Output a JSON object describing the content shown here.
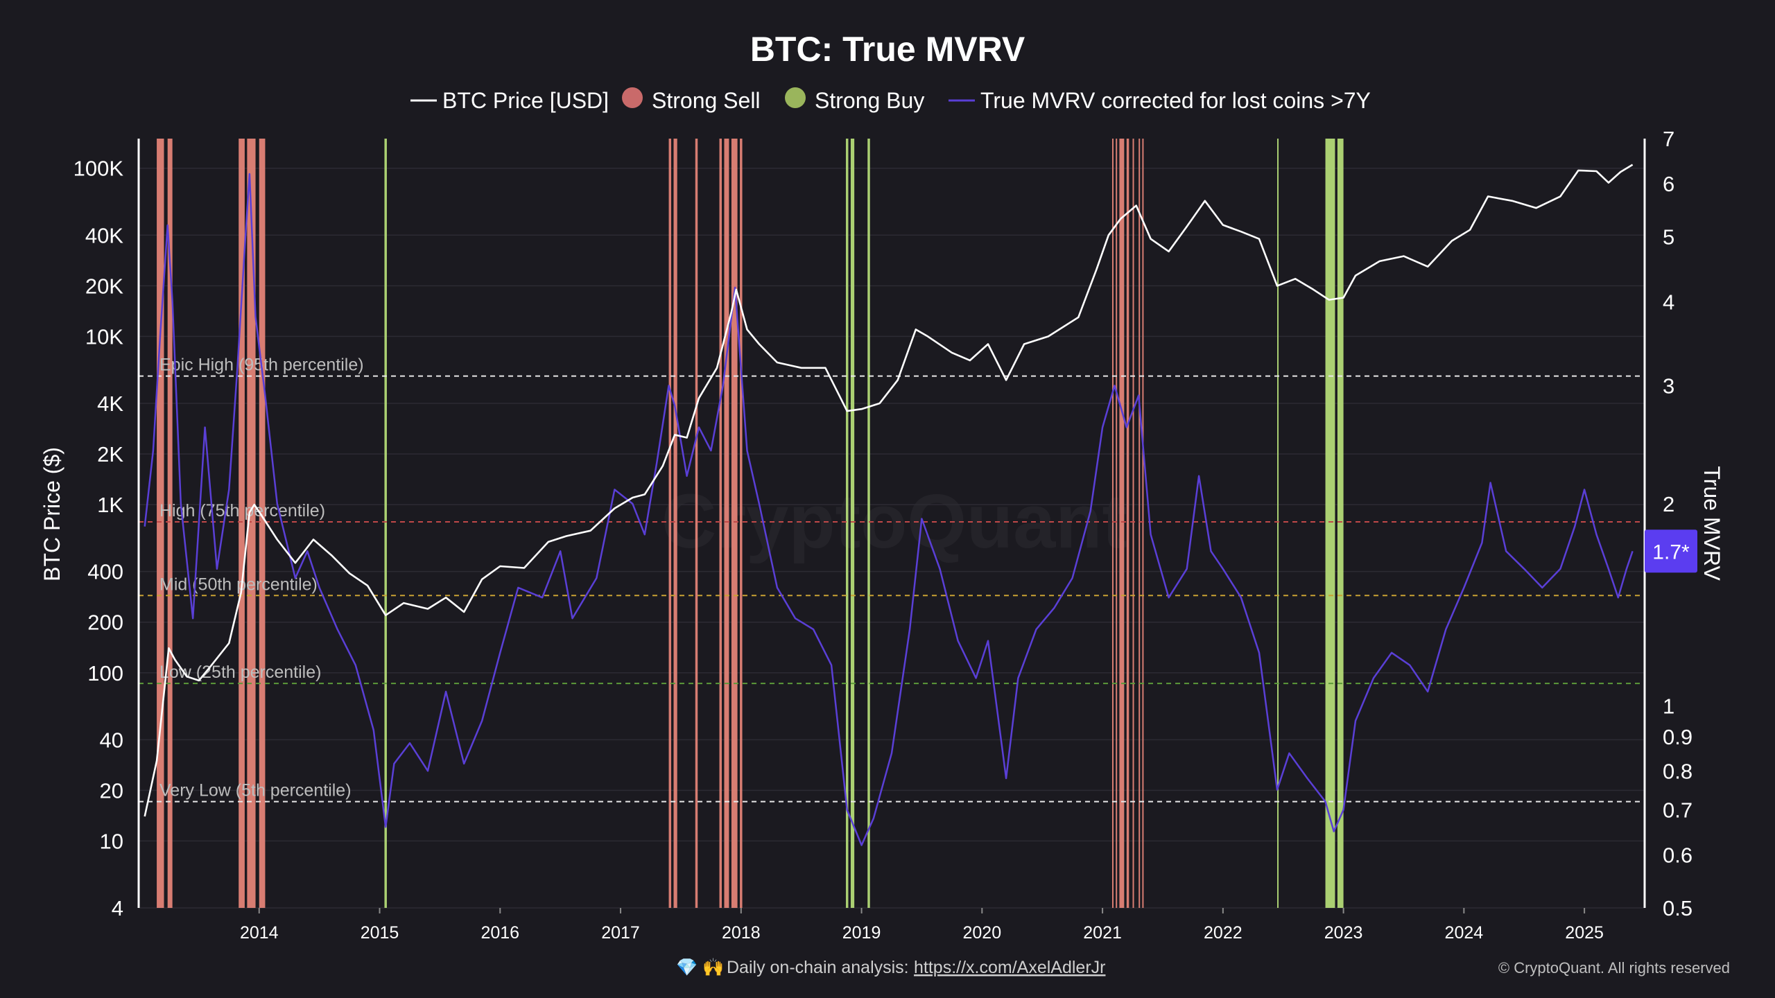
{
  "chart_data": {
    "type": "line",
    "title": "BTC: True MVRV",
    "legend": [
      {
        "label": "BTC Price [USD]",
        "marker": "line",
        "color": "#ffffff"
      },
      {
        "label": "Strong Sell",
        "marker": "dot",
        "color": "#c96a6a"
      },
      {
        "label": "Strong Buy",
        "marker": "dot",
        "color": "#9ab55c"
      },
      {
        "label": "True MVRV corrected for lost coins >7Y",
        "marker": "line",
        "color": "#5a3fd6"
      }
    ],
    "legend_position": "top-center",
    "y_left": {
      "label": "BTC Price ($)",
      "scale": "log",
      "range": [
        4,
        150000
      ],
      "ticks": [
        {
          "v": 4,
          "t": "4"
        },
        {
          "v": 10,
          "t": "10"
        },
        {
          "v": 20,
          "t": "20"
        },
        {
          "v": 40,
          "t": "40"
        },
        {
          "v": 100,
          "t": "100"
        },
        {
          "v": 200,
          "t": "200"
        },
        {
          "v": 400,
          "t": "400"
        },
        {
          "v": 1000,
          "t": "1K"
        },
        {
          "v": 2000,
          "t": "2K"
        },
        {
          "v": 4000,
          "t": "4K"
        },
        {
          "v": 10000,
          "t": "10K"
        },
        {
          "v": 20000,
          "t": "20K"
        },
        {
          "v": 40000,
          "t": "40K"
        },
        {
          "v": 100000,
          "t": "100K"
        }
      ]
    },
    "y_right": {
      "label": "True MVRV",
      "scale": "log",
      "range": [
        0.5,
        7
      ],
      "ticks": [
        {
          "v": 0.5,
          "t": "0.5"
        },
        {
          "v": 0.6,
          "t": "0.6"
        },
        {
          "v": 0.7,
          "t": "0.7"
        },
        {
          "v": 0.8,
          "t": "0.8"
        },
        {
          "v": 0.9,
          "t": "0.9"
        },
        {
          "v": 1,
          "t": "1"
        },
        {
          "v": 2,
          "t": "2"
        },
        {
          "v": 3,
          "t": "3"
        },
        {
          "v": 4,
          "t": "4"
        },
        {
          "v": 5,
          "t": "5"
        },
        {
          "v": 6,
          "t": "6"
        },
        {
          "v": 7,
          "t": "7"
        }
      ],
      "current_value_label": "1.7*",
      "current_value": 1.7
    },
    "x_axis": {
      "range": [
        2013.0,
        2025.5
      ],
      "ticks": [
        "2014",
        "2015",
        "2016",
        "2017",
        "2018",
        "2019",
        "2020",
        "2021",
        "2022",
        "2023",
        "2024",
        "2025"
      ]
    },
    "grid": true,
    "reference_lines": [
      {
        "label": "Epic High (95th percentile)",
        "mvrv": 3.1,
        "color": "#e8e8e8"
      },
      {
        "label": "High (75th percentile)",
        "mvrv": 1.88,
        "color": "#c04848"
      },
      {
        "label": "Mid (50th percentile)",
        "mvrv": 1.46,
        "color": "#c9a133"
      },
      {
        "label": "Low (25th percentile)",
        "mvrv": 1.08,
        "color": "#5c9a3a"
      },
      {
        "label": "Very Low (5th percentile)",
        "mvrv": 0.72,
        "color": "#e8e8e8"
      }
    ],
    "series": [
      {
        "name": "BTC Price [USD]",
        "color": "#ffffff",
        "points": [
          [
            2013.05,
            14
          ],
          [
            2013.15,
            30
          ],
          [
            2013.25,
            140
          ],
          [
            2013.3,
            120
          ],
          [
            2013.4,
            95
          ],
          [
            2013.5,
            90
          ],
          [
            2013.6,
            110
          ],
          [
            2013.75,
            150
          ],
          [
            2013.85,
            300
          ],
          [
            2013.92,
            900
          ],
          [
            2013.96,
            1000
          ],
          [
            2014.05,
            800
          ],
          [
            2014.15,
            620
          ],
          [
            2014.3,
            450
          ],
          [
            2014.45,
            620
          ],
          [
            2014.6,
            500
          ],
          [
            2014.75,
            390
          ],
          [
            2014.9,
            330
          ],
          [
            2015.05,
            220
          ],
          [
            2015.2,
            260
          ],
          [
            2015.4,
            240
          ],
          [
            2015.55,
            280
          ],
          [
            2015.7,
            230
          ],
          [
            2015.85,
            360
          ],
          [
            2016.0,
            430
          ],
          [
            2016.2,
            420
          ],
          [
            2016.4,
            600
          ],
          [
            2016.55,
            650
          ],
          [
            2016.75,
            700
          ],
          [
            2016.95,
            950
          ],
          [
            2017.1,
            1100
          ],
          [
            2017.2,
            1150
          ],
          [
            2017.35,
            1700
          ],
          [
            2017.45,
            2600
          ],
          [
            2017.55,
            2500
          ],
          [
            2017.65,
            4300
          ],
          [
            2017.8,
            6500
          ],
          [
            2017.92,
            14000
          ],
          [
            2017.96,
            19000
          ],
          [
            2018.05,
            11000
          ],
          [
            2018.15,
            9000
          ],
          [
            2018.3,
            7000
          ],
          [
            2018.5,
            6500
          ],
          [
            2018.7,
            6500
          ],
          [
            2018.88,
            3600
          ],
          [
            2019.0,
            3700
          ],
          [
            2019.15,
            4000
          ],
          [
            2019.3,
            5500
          ],
          [
            2019.45,
            11000
          ],
          [
            2019.55,
            10000
          ],
          [
            2019.75,
            8000
          ],
          [
            2019.9,
            7200
          ],
          [
            2020.05,
            9000
          ],
          [
            2020.2,
            5500
          ],
          [
            2020.35,
            9000
          ],
          [
            2020.55,
            10000
          ],
          [
            2020.8,
            13000
          ],
          [
            2020.95,
            25000
          ],
          [
            2021.05,
            40000
          ],
          [
            2021.15,
            50000
          ],
          [
            2021.28,
            60000
          ],
          [
            2021.4,
            38000
          ],
          [
            2021.55,
            32000
          ],
          [
            2021.7,
            45000
          ],
          [
            2021.85,
            64000
          ],
          [
            2022.0,
            46000
          ],
          [
            2022.15,
            42000
          ],
          [
            2022.3,
            38000
          ],
          [
            2022.45,
            20000
          ],
          [
            2022.6,
            22000
          ],
          [
            2022.75,
            19000
          ],
          [
            2022.88,
            16500
          ],
          [
            2023.0,
            17000
          ],
          [
            2023.1,
            23000
          ],
          [
            2023.3,
            28000
          ],
          [
            2023.5,
            30000
          ],
          [
            2023.7,
            26000
          ],
          [
            2023.9,
            37000
          ],
          [
            2024.05,
            43000
          ],
          [
            2024.2,
            68000
          ],
          [
            2024.4,
            64000
          ],
          [
            2024.6,
            58000
          ],
          [
            2024.8,
            68000
          ],
          [
            2024.95,
            97000
          ],
          [
            2025.1,
            96000
          ],
          [
            2025.2,
            82000
          ],
          [
            2025.3,
            95000
          ],
          [
            2025.4,
            105000
          ]
        ]
      },
      {
        "name": "True MVRV corrected for lost coins >7Y",
        "color": "#5a3fd6",
        "points": [
          [
            2013.05,
            1.85
          ],
          [
            2013.12,
            2.4
          ],
          [
            2013.18,
            3.6
          ],
          [
            2013.24,
            5.2
          ],
          [
            2013.28,
            4.0
          ],
          [
            2013.35,
            2.0
          ],
          [
            2013.45,
            1.35
          ],
          [
            2013.55,
            2.6
          ],
          [
            2013.65,
            1.6
          ],
          [
            2013.75,
            2.1
          ],
          [
            2013.82,
            3.2
          ],
          [
            2013.88,
            4.8
          ],
          [
            2013.92,
            6.2
          ],
          [
            2013.97,
            3.8
          ],
          [
            2014.05,
            2.9
          ],
          [
            2014.15,
            2.0
          ],
          [
            2014.3,
            1.55
          ],
          [
            2014.4,
            1.7
          ],
          [
            2014.5,
            1.5
          ],
          [
            2014.65,
            1.3
          ],
          [
            2014.8,
            1.15
          ],
          [
            2014.95,
            0.92
          ],
          [
            2015.05,
            0.66
          ],
          [
            2015.12,
            0.82
          ],
          [
            2015.25,
            0.88
          ],
          [
            2015.4,
            0.8
          ],
          [
            2015.55,
            1.05
          ],
          [
            2015.7,
            0.82
          ],
          [
            2015.85,
            0.95
          ],
          [
            2016.0,
            1.2
          ],
          [
            2016.15,
            1.5
          ],
          [
            2016.35,
            1.45
          ],
          [
            2016.5,
            1.7
          ],
          [
            2016.6,
            1.35
          ],
          [
            2016.8,
            1.55
          ],
          [
            2016.95,
            2.1
          ],
          [
            2017.1,
            2.0
          ],
          [
            2017.2,
            1.8
          ],
          [
            2017.3,
            2.3
          ],
          [
            2017.4,
            3.0
          ],
          [
            2017.45,
            2.8
          ],
          [
            2017.55,
            2.2
          ],
          [
            2017.65,
            2.6
          ],
          [
            2017.75,
            2.4
          ],
          [
            2017.85,
            3.0
          ],
          [
            2017.95,
            4.2
          ],
          [
            2018.05,
            2.4
          ],
          [
            2018.15,
            2.0
          ],
          [
            2018.3,
            1.5
          ],
          [
            2018.45,
            1.35
          ],
          [
            2018.6,
            1.3
          ],
          [
            2018.75,
            1.15
          ],
          [
            2018.88,
            0.7
          ],
          [
            2019.0,
            0.62
          ],
          [
            2019.1,
            0.68
          ],
          [
            2019.25,
            0.85
          ],
          [
            2019.4,
            1.3
          ],
          [
            2019.5,
            1.9
          ],
          [
            2019.65,
            1.6
          ],
          [
            2019.8,
            1.25
          ],
          [
            2019.95,
            1.1
          ],
          [
            2020.05,
            1.25
          ],
          [
            2020.2,
            0.78
          ],
          [
            2020.3,
            1.1
          ],
          [
            2020.45,
            1.3
          ],
          [
            2020.6,
            1.4
          ],
          [
            2020.75,
            1.55
          ],
          [
            2020.9,
            1.95
          ],
          [
            2021.0,
            2.6
          ],
          [
            2021.1,
            3.0
          ],
          [
            2021.2,
            2.6
          ],
          [
            2021.3,
            2.9
          ],
          [
            2021.4,
            1.8
          ],
          [
            2021.55,
            1.45
          ],
          [
            2021.7,
            1.6
          ],
          [
            2021.8,
            2.2
          ],
          [
            2021.9,
            1.7
          ],
          [
            2022.0,
            1.6
          ],
          [
            2022.15,
            1.45
          ],
          [
            2022.3,
            1.2
          ],
          [
            2022.45,
            0.75
          ],
          [
            2022.55,
            0.85
          ],
          [
            2022.7,
            0.78
          ],
          [
            2022.85,
            0.72
          ],
          [
            2022.92,
            0.65
          ],
          [
            2023.0,
            0.7
          ],
          [
            2023.1,
            0.95
          ],
          [
            2023.25,
            1.1
          ],
          [
            2023.4,
            1.2
          ],
          [
            2023.55,
            1.15
          ],
          [
            2023.7,
            1.05
          ],
          [
            2023.85,
            1.3
          ],
          [
            2024.0,
            1.5
          ],
          [
            2024.15,
            1.75
          ],
          [
            2024.22,
            2.15
          ],
          [
            2024.35,
            1.7
          ],
          [
            2024.5,
            1.6
          ],
          [
            2024.65,
            1.5
          ],
          [
            2024.8,
            1.6
          ],
          [
            2024.92,
            1.85
          ],
          [
            2025.0,
            2.1
          ],
          [
            2025.1,
            1.8
          ],
          [
            2025.2,
            1.6
          ],
          [
            2025.28,
            1.45
          ],
          [
            2025.35,
            1.6
          ],
          [
            2025.4,
            1.7
          ]
        ]
      }
    ],
    "strong_sell_bands": [
      [
        2013.15,
        2013.21
      ],
      [
        2013.24,
        2013.28
      ],
      [
        2013.83,
        2013.88
      ],
      [
        2013.9,
        2013.97
      ],
      [
        2014.0,
        2014.05
      ],
      [
        2017.4,
        2017.42
      ],
      [
        2017.44,
        2017.47
      ],
      [
        2017.62,
        2017.64
      ],
      [
        2017.82,
        2017.84
      ],
      [
        2017.86,
        2017.9
      ],
      [
        2017.92,
        2017.97
      ],
      [
        2017.99,
        2018.01
      ],
      [
        2021.08,
        2021.09
      ],
      [
        2021.11,
        2021.12
      ],
      [
        2021.14,
        2021.18
      ],
      [
        2021.2,
        2021.22
      ],
      [
        2021.25,
        2021.26
      ],
      [
        2021.3,
        2021.31
      ],
      [
        2021.33,
        2021.34
      ]
    ],
    "strong_buy_bands": [
      [
        2015.04,
        2015.06
      ],
      [
        2018.87,
        2018.89
      ],
      [
        2018.91,
        2018.94
      ],
      [
        2019.05,
        2019.07
      ],
      [
        2022.45,
        2022.46
      ],
      [
        2022.85,
        2022.93
      ],
      [
        2022.95,
        2023.0
      ]
    ],
    "watermark": "CryptoQuant"
  },
  "footer": {
    "lead_icons": "💎 🙌",
    "text": "Daily on-chain analysis:",
    "link": "https://x.com/AxelAdlerJr",
    "copyright": "© CryptoQuant. All rights reserved"
  }
}
